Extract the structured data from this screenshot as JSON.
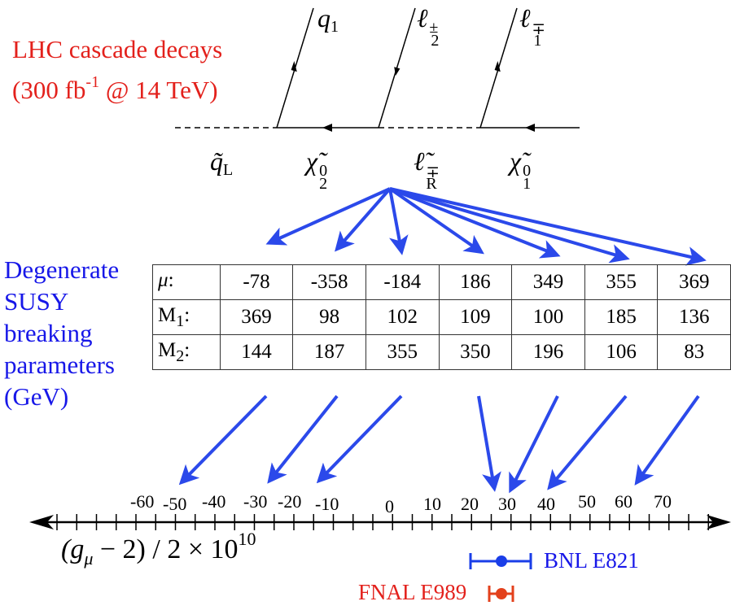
{
  "header": {
    "line1": "LHC cascade decays",
    "line2_pre": "(300 fb",
    "line2_sup": "-1",
    "line2_post": " @ 14 TeV)"
  },
  "diagram": {
    "external_legs": [
      {
        "base": "q",
        "sub": "1",
        "sup": ""
      },
      {
        "base": "ℓ",
        "sub": "2",
        "sup": "±"
      },
      {
        "base": "ℓ",
        "sub": "1",
        "sup": "∓"
      }
    ],
    "propagators": [
      {
        "base": "q̃",
        "sub": "L",
        "sup": ""
      },
      {
        "base": "χ̃",
        "sub": "2",
        "sup": "0"
      },
      {
        "base": "ℓ̃",
        "sub": "R",
        "sup": "∓"
      },
      {
        "base": "χ̃",
        "sub": "1",
        "sup": "0"
      }
    ]
  },
  "side_label": {
    "lines": [
      "Degenerate",
      "SUSY",
      "breaking",
      "parameters",
      "(GeV)"
    ]
  },
  "table": {
    "rows": [
      {
        "label": "μ",
        "label_sub": "",
        "label_colon": ":",
        "values": [
          "-78",
          "-358",
          "-184",
          "186",
          "349",
          "355",
          "369"
        ]
      },
      {
        "label": "M",
        "label_sub": "1",
        "label_colon": ":",
        "values": [
          "369",
          "98",
          "102",
          "109",
          "100",
          "185",
          "136"
        ]
      },
      {
        "label": "M",
        "label_sub": "2",
        "label_colon": ":",
        "values": [
          "144",
          "187",
          "355",
          "350",
          "196",
          "106",
          "83"
        ]
      }
    ]
  },
  "axis": {
    "tick_labels": [
      "-60",
      "-50",
      "-40",
      "-30",
      "-20",
      "-10",
      "0",
      "10",
      "20",
      "30",
      "40",
      "50",
      "60",
      "70"
    ],
    "formula": {
      "pre": "(g",
      "sub": "μ",
      "mid": " − 2) / 2 × 10",
      "sup": "10"
    }
  },
  "experiments": [
    {
      "name": "BNL E821",
      "color": "#1a3ee8"
    },
    {
      "name": "FNAL E989",
      "color": "#e3411c"
    }
  ],
  "colors": {
    "red_text": "#e3211c",
    "blue_text": "#1717e8",
    "arrow": "#2b49ea"
  }
}
